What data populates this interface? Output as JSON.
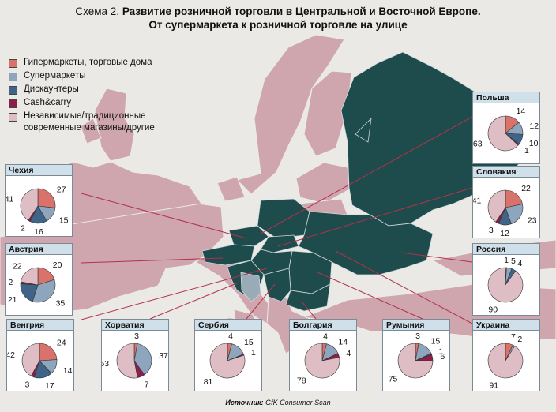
{
  "title": {
    "prefix": "Схема 2.",
    "line1": "Развитие розничной торговли в Центральной и Восточной Европе.",
    "line2": "От супермаркета к розничной торговле на улице"
  },
  "source": {
    "label": "Источник:",
    "text": "GfK Consumer Scan"
  },
  "colors": {
    "hyper": "#d9726b",
    "super": "#8da6be",
    "disc": "#3f6488",
    "cash": "#8c1f4a",
    "indep": "#dfbdc4",
    "region_highlight": "#1e4b4b",
    "region_other": "#cfa5ae",
    "sea": "#ebe9e6"
  },
  "legend": [
    {
      "key": "hyper",
      "label": "Гипермаркеты, торговые дома"
    },
    {
      "key": "super",
      "label": "Супермаркеты"
    },
    {
      "key": "disc",
      "label": "Дискаунтеры"
    },
    {
      "key": "cash",
      "label": "Cash&carry"
    },
    {
      "key": "indep",
      "label": "Независимые/традиционные современные магазины/другие"
    }
  ],
  "chart_data": {
    "type": "pie",
    "categories": [
      "Гипермаркеты, торговые дома",
      "Супермаркеты",
      "Дискаунтеры",
      "Cash&carry",
      "Независимые/традиционные современные магазины/другие"
    ],
    "series": [
      {
        "name": "Польша",
        "values": [
          14,
          12,
          10,
          1,
          63
        ]
      },
      {
        "name": "Чехия",
        "values": [
          27,
          15,
          16,
          2,
          41
        ]
      },
      {
        "name": "Словакия",
        "values": [
          22,
          23,
          12,
          3,
          41
        ]
      },
      {
        "name": "Австрия",
        "values": [
          20,
          35,
          21,
          2,
          22
        ]
      },
      {
        "name": "Россия",
        "values": [
          1,
          5,
          4,
          0,
          90
        ]
      },
      {
        "name": "Венгрия",
        "values": [
          24,
          14,
          17,
          3,
          42
        ]
      },
      {
        "name": "Хорватия",
        "values": [
          3,
          37,
          0,
          7,
          53
        ]
      },
      {
        "name": "Сербия",
        "values": [
          4,
          15,
          0,
          1,
          81
        ]
      },
      {
        "name": "Болгария",
        "values": [
          4,
          14,
          0,
          4,
          78
        ]
      },
      {
        "name": "Румыния",
        "values": [
          3,
          15,
          1,
          6,
          75
        ]
      },
      {
        "name": "Украина",
        "values": [
          7,
          2,
          0,
          0,
          91
        ]
      }
    ]
  }
}
